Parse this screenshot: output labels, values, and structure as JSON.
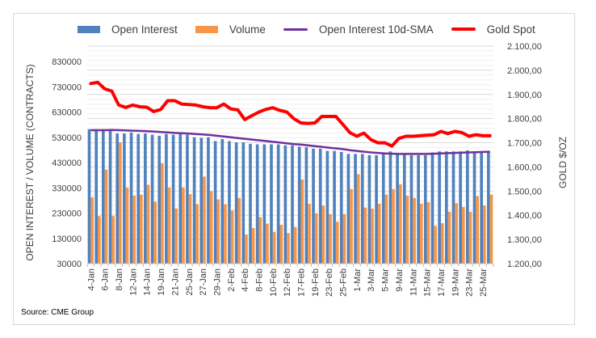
{
  "chart_data": {
    "type": "bar",
    "title": "",
    "legend_position": "top",
    "legend": [
      {
        "name": "Open Interest",
        "kind": "bar",
        "color": "#4f81bd"
      },
      {
        "name": "Volume",
        "kind": "bar",
        "color": "#f79646"
      },
      {
        "name": "Open Interest 10d-SMA",
        "kind": "line",
        "color": "#7030a0"
      },
      {
        "name": "Gold Spot",
        "kind": "line",
        "color": "#ff0000"
      }
    ],
    "ylabel_left": "OPEN INTEREST / VOLUME (CONTRACTS)",
    "ylabel_right": "GOLD $/OZ",
    "ylim_left": [
      30000,
      830000
    ],
    "ylim_right": [
      1200,
      2100
    ],
    "yticks_left": [
      "830000",
      "730000",
      "630000",
      "530000",
      "430000",
      "330000",
      "230000",
      "130000",
      "30000"
    ],
    "yticks_right": [
      "2.100,00",
      "2.000,00",
      "1.900,00",
      "1.800,00",
      "1.700,00",
      "1.600,00",
      "1.500,00",
      "1.400,00",
      "1.300,00",
      "1.200,00"
    ],
    "grid": true,
    "categories": [
      "4-Jan",
      "5-Jan",
      "6-Jan",
      "7-Jan",
      "8-Jan",
      "11-Jan",
      "12-Jan",
      "13-Jan",
      "14-Jan",
      "15-Jan",
      "19-Jan",
      "20-Jan",
      "21-Jan",
      "22-Jan",
      "25-Jan",
      "26-Jan",
      "27-Jan",
      "28-Jan",
      "29-Jan",
      "1-Feb",
      "2-Feb",
      "3-Feb",
      "4-Feb",
      "5-Feb",
      "8-Feb",
      "9-Feb",
      "10-Feb",
      "11-Feb",
      "12-Feb",
      "16-Feb",
      "17-Feb",
      "18-Feb",
      "19-Feb",
      "22-Feb",
      "23-Feb",
      "24-Feb",
      "25-Feb",
      "26-Feb",
      "1-Mar",
      "2-Mar",
      "3-Mar",
      "4-Mar",
      "5-Mar",
      "8-Mar",
      "9-Mar",
      "10-Mar",
      "11-Mar",
      "12-Mar",
      "15-Mar",
      "16-Mar",
      "17-Mar",
      "18-Mar",
      "19-Mar",
      "22-Mar",
      "23-Mar",
      "24-Mar",
      "25-Mar",
      "26-Mar"
    ],
    "xtick_labels": [
      "4-Jan",
      "6-Jan",
      "8-Jan",
      "12-Jan",
      "14-Jan",
      "19-Jan",
      "21-Jan",
      "25-Jan",
      "27-Jan",
      "29-Jan",
      "2-Feb",
      "4-Feb",
      "8-Feb",
      "10-Feb",
      "12-Feb",
      "17-Feb",
      "19-Feb",
      "23-Feb",
      "25-Feb",
      "1-Mar",
      "3-Mar",
      "5-Mar",
      "9-Mar",
      "11-Mar",
      "15-Mar",
      "17-Mar",
      "19-Mar",
      "23-Mar",
      "25-Mar"
    ],
    "series": [
      {
        "name": "Open Interest",
        "axis": "left",
        "type": "bar",
        "values": [
          562000,
          562000,
          562000,
          560000,
          545000,
          545000,
          549000,
          543000,
          545000,
          540000,
          536000,
          543000,
          540000,
          543000,
          540000,
          530000,
          528000,
          530000,
          515000,
          523000,
          515000,
          510000,
          510000,
          504000,
          502000,
          502000,
          502000,
          502000,
          498000,
          498000,
          493000,
          491000,
          485000,
          485000,
          476000,
          476000,
          472000,
          464000,
          464000,
          464000,
          459000,
          459000,
          464000,
          474000,
          464000,
          464000,
          459000,
          459000,
          459000,
          470000,
          474000,
          474000,
          474000,
          474000,
          478000,
          474000,
          474000,
          471000
        ]
      },
      {
        "name": "Volume",
        "axis": "left",
        "type": "bar",
        "values": [
          292000,
          218000,
          402000,
          218000,
          510000,
          331000,
          299000,
          303000,
          342000,
          275000,
          427000,
          331000,
          248000,
          331000,
          305000,
          265000,
          374000,
          316000,
          284000,
          265000,
          241000,
          290000,
          145000,
          171000,
          214000,
          188000,
          156000,
          183000,
          151000,
          175000,
          363000,
          267000,
          229000,
          259000,
          226000,
          196000,
          226000,
          325000,
          384000,
          252000,
          248000,
          267000,
          303000,
          325000,
          344000,
          299000,
          290000,
          267000,
          273000,
          179000,
          190000,
          235000,
          269000,
          254000,
          235000,
          297000,
          260000,
          303000
        ]
      },
      {
        "name": "Open Interest 10d-SMA",
        "axis": "left",
        "type": "line",
        "values": [
          558000,
          558000,
          558000,
          559000,
          558000,
          557000,
          556000,
          555000,
          554000,
          553000,
          551000,
          549000,
          547000,
          546000,
          545000,
          543000,
          541000,
          539000,
          536000,
          533000,
          530000,
          527000,
          524000,
          521000,
          518000,
          515000,
          512000,
          509000,
          506000,
          503000,
          501000,
          498000,
          495000,
          492000,
          489000,
          486000,
          483000,
          479000,
          476000,
          473000,
          470000,
          468000,
          466000,
          465000,
          464000,
          464000,
          464000,
          464000,
          464000,
          465000,
          466000,
          467000,
          468000,
          469000,
          470000,
          471000,
          472000,
          473000
        ]
      },
      {
        "name": "Gold Spot",
        "axis": "right",
        "type": "line",
        "values": [
          1945,
          1950,
          1923,
          1914,
          1856,
          1846,
          1856,
          1849,
          1847,
          1829,
          1838,
          1874,
          1874,
          1860,
          1858,
          1856,
          1849,
          1845,
          1845,
          1860,
          1840,
          1836,
          1796,
          1812,
          1827,
          1838,
          1845,
          1834,
          1827,
          1800,
          1782,
          1780,
          1782,
          1809,
          1809,
          1809,
          1776,
          1742,
          1727,
          1740,
          1713,
          1700,
          1700,
          1686,
          1718,
          1727,
          1727,
          1729,
          1731,
          1733,
          1747,
          1738,
          1747,
          1742,
          1727,
          1733,
          1729,
          1729
        ]
      }
    ]
  },
  "source": "Source: CME Group"
}
